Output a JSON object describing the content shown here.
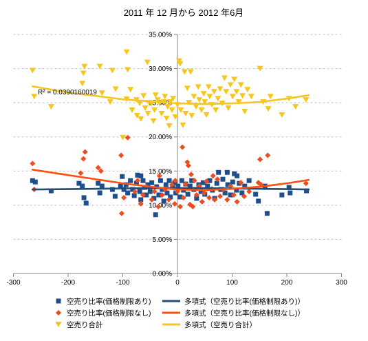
{
  "chart_data": {
    "type": "scatter",
    "title": "2011 年 12 月から 2012 年6月",
    "xlabel": "",
    "ylabel": "",
    "xlim": [
      -300,
      300
    ],
    "ylim": [
      0,
      35
    ],
    "x_ticks": [
      {
        "value": -300,
        "label": "-300"
      },
      {
        "value": -200,
        "label": "-200"
      },
      {
        "value": -100,
        "label": "-100"
      },
      {
        "value": 0,
        "label": "0"
      },
      {
        "value": 100,
        "label": "100"
      },
      {
        "value": 200,
        "label": "200"
      },
      {
        "value": 300,
        "label": "300"
      }
    ],
    "y_ticks": [
      {
        "value": 0,
        "label": "0.00%"
      },
      {
        "value": 5,
        "label": "5.00%"
      },
      {
        "value": 10,
        "label": "10.00%"
      },
      {
        "value": 15,
        "label": "15.00%"
      },
      {
        "value": 20,
        "label": "20.00%"
      },
      {
        "value": 25,
        "label": "25.00%"
      },
      {
        "value": 30,
        "label": "30.00%"
      },
      {
        "value": 35,
        "label": "35.00%"
      }
    ],
    "grid": "horizontal",
    "legend_position": "bottom",
    "annotation": "R² = 0.0390160019",
    "series": [
      {
        "name": "空売り比率(価格制限あり)",
        "marker": "square",
        "color": "#1F4E8C",
        "points": [
          [
            -265,
            13.6
          ],
          [
            -260,
            13.4
          ],
          [
            -231,
            12.1
          ],
          [
            -180,
            13.2
          ],
          [
            -174,
            12.8
          ],
          [
            -171,
            11.1
          ],
          [
            -167,
            10.3
          ],
          [
            -145,
            13.2
          ],
          [
            -142,
            11.8
          ],
          [
            -138,
            12.8
          ],
          [
            -119,
            12.3
          ],
          [
            -114,
            11.3
          ],
          [
            -104,
            12.8
          ],
          [
            -101,
            14.2
          ],
          [
            -98,
            12.3
          ],
          [
            -94,
            13.0
          ],
          [
            -91,
            11.8
          ],
          [
            -86,
            13.6
          ],
          [
            -82,
            12.3
          ],
          [
            -79,
            11.4
          ],
          [
            -75,
            13.2
          ],
          [
            -73,
            14.4
          ],
          [
            -69,
            12.0
          ],
          [
            -67,
            10.8
          ],
          [
            -67,
            14.3
          ],
          [
            -63,
            13.6
          ],
          [
            -60,
            12.6
          ],
          [
            -57,
            11.5
          ],
          [
            -54,
            13.0
          ],
          [
            -50,
            12.0
          ],
          [
            -47,
            13.3
          ],
          [
            -43,
            11.0
          ],
          [
            -40,
            8.6
          ],
          [
            -38,
            12.7
          ],
          [
            -34,
            11.5
          ],
          [
            -31,
            13.6
          ],
          [
            -28,
            12.3
          ],
          [
            -25,
            10.6
          ],
          [
            -21,
            13.0
          ],
          [
            -19,
            11.8
          ],
          [
            -15,
            13.6
          ],
          [
            -13,
            11.2
          ],
          [
            -9,
            12.6
          ],
          [
            -5,
            13.3
          ],
          [
            -3,
            11.8
          ],
          [
            1,
            12.8
          ],
          [
            5,
            11.2
          ],
          [
            8,
            13.6
          ],
          [
            11,
            12.2
          ],
          [
            15,
            13.1
          ],
          [
            19,
            11.6
          ],
          [
            23,
            12.8
          ],
          [
            26,
            13.6
          ],
          [
            30,
            12.3
          ],
          [
            35,
            11.0
          ],
          [
            39,
            13.0
          ],
          [
            43,
            12.0
          ],
          [
            47,
            13.3
          ],
          [
            50,
            11.6
          ],
          [
            55,
            12.8
          ],
          [
            59,
            13.6
          ],
          [
            64,
            12.2
          ],
          [
            68,
            11.0
          ],
          [
            72,
            13.2
          ],
          [
            75,
            14.8
          ],
          [
            79,
            12.3
          ],
          [
            83,
            13.8
          ],
          [
            87,
            11.8
          ],
          [
            91,
            14.8
          ],
          [
            92,
            13.0
          ],
          [
            97,
            11.5
          ],
          [
            101,
            13.4
          ],
          [
            104,
            14.6
          ],
          [
            108,
            12.2
          ],
          [
            109,
            14.3
          ],
          [
            113,
            13.2
          ],
          [
            118,
            11.8
          ],
          [
            123,
            12.8
          ],
          [
            131,
            13.6
          ],
          [
            143,
            11.6
          ],
          [
            148,
            10.6
          ],
          [
            160,
            12.8
          ],
          [
            164,
            8.8
          ],
          [
            191,
            11.5
          ],
          [
            204,
            12.6
          ],
          [
            206,
            11.8
          ],
          [
            236,
            12.1
          ]
        ]
      },
      {
        "name": "空売り比率(価格制限なし)",
        "marker": "diamond",
        "color": "#EE4B1E",
        "points": [
          [
            -265,
            16.1
          ],
          [
            -262,
            12.3
          ],
          [
            -177,
            14.7
          ],
          [
            -172,
            16.8
          ],
          [
            -169,
            17.8
          ],
          [
            -145,
            15.5
          ],
          [
            -140,
            15.0
          ],
          [
            -103,
            17.3
          ],
          [
            -102,
            8.8
          ],
          [
            -98,
            11.1
          ],
          [
            -91,
            19.9
          ],
          [
            -78,
            12.0
          ],
          [
            -73,
            13.6
          ],
          [
            -67,
            10.2
          ],
          [
            -63,
            11.5
          ],
          [
            -57,
            12.7
          ],
          [
            -47,
            10.8
          ],
          [
            -42,
            12.0
          ],
          [
            -35,
            9.8
          ],
          [
            -33,
            14.3
          ],
          [
            -28,
            11.5
          ],
          [
            -23,
            12.3
          ],
          [
            -16,
            10.8
          ],
          [
            -10,
            13.0
          ],
          [
            -5,
            10.2
          ],
          [
            -4,
            13.6
          ],
          [
            0,
            12.0
          ],
          [
            5,
            9.8
          ],
          [
            9,
            18.5
          ],
          [
            11,
            11.1
          ],
          [
            15,
            13.1
          ],
          [
            18,
            16.3
          ],
          [
            20,
            15.8
          ],
          [
            23,
            10.1
          ],
          [
            25,
            14.5
          ],
          [
            28,
            9.8
          ],
          [
            31,
            13.6
          ],
          [
            35,
            11.5
          ],
          [
            40,
            12.8
          ],
          [
            45,
            10.5
          ],
          [
            49,
            11.8
          ],
          [
            53,
            13.5
          ],
          [
            58,
            11.1
          ],
          [
            63,
            12.4
          ],
          [
            65,
            14.3
          ],
          [
            68,
            10.8
          ],
          [
            73,
            13.8
          ],
          [
            78,
            11.3
          ],
          [
            84,
            12.3
          ],
          [
            91,
            10.8
          ],
          [
            97,
            12.8
          ],
          [
            103,
            11.5
          ],
          [
            109,
            10.5
          ],
          [
            116,
            13.3
          ],
          [
            122,
            11.3
          ],
          [
            131,
            12.0
          ],
          [
            148,
            13.3
          ],
          [
            151,
            16.7
          ],
          [
            153,
            13.0
          ],
          [
            165,
            17.3
          ],
          [
            235,
            13.2
          ]
        ]
      },
      {
        "name": "空売り合計",
        "marker": "triangle-down",
        "color": "#F7C61C",
        "points": [
          [
            -265,
            29.7
          ],
          [
            -262,
            25.9
          ],
          [
            -231,
            24.4
          ],
          [
            -174,
            27.8
          ],
          [
            -172,
            29.3
          ],
          [
            -170,
            30.3
          ],
          [
            -142,
            30.3
          ],
          [
            -138,
            26.4
          ],
          [
            -123,
            25.1
          ],
          [
            -119,
            29.7
          ],
          [
            -113,
            27.0
          ],
          [
            -100,
            19.9
          ],
          [
            -93,
            32.4
          ],
          [
            -93,
            25.5
          ],
          [
            -91,
            29.8
          ],
          [
            -86,
            26.9
          ],
          [
            -83,
            23.9
          ],
          [
            -75,
            25.4
          ],
          [
            -74,
            23.1
          ],
          [
            -69,
            24.9
          ],
          [
            -67,
            22.6
          ],
          [
            -62,
            26.0
          ],
          [
            -59,
            24.2
          ],
          [
            -55,
            30.9
          ],
          [
            -54,
            23.4
          ],
          [
            -52,
            25.0
          ],
          [
            -47,
            24.9
          ],
          [
            -44,
            22.3
          ],
          [
            -42,
            23.9
          ],
          [
            -40,
            26.1
          ],
          [
            -36,
            25.4
          ],
          [
            -33,
            24.9
          ],
          [
            -29,
            23.4
          ],
          [
            -25,
            25.1
          ],
          [
            -23,
            25.9
          ],
          [
            -20,
            22.7
          ],
          [
            -18,
            24.4
          ],
          [
            -15,
            21.6
          ],
          [
            -13,
            25.1
          ],
          [
            -10,
            23.9
          ],
          [
            -8,
            25.6
          ],
          [
            -4,
            22.9
          ],
          [
            0,
            24.7
          ],
          [
            3,
            31.1
          ],
          [
            5,
            30.7
          ],
          [
            6,
            23.9
          ],
          [
            10,
            21.7
          ],
          [
            13,
            29.5
          ],
          [
            15,
            23.4
          ],
          [
            18,
            27.1
          ],
          [
            21,
            25.0
          ],
          [
            24,
            29.5
          ],
          [
            26,
            23.1
          ],
          [
            30,
            25.9
          ],
          [
            34,
            24.4
          ],
          [
            38,
            27.3
          ],
          [
            40,
            25.4
          ],
          [
            44,
            23.9
          ],
          [
            48,
            26.3
          ],
          [
            50,
            25.1
          ],
          [
            53,
            23.2
          ],
          [
            57,
            27.3
          ],
          [
            59,
            25.9
          ],
          [
            63,
            24.7
          ],
          [
            67,
            26.6
          ],
          [
            70,
            23.9
          ],
          [
            74,
            25.6
          ],
          [
            78,
            27.0
          ],
          [
            82,
            24.9
          ],
          [
            86,
            28.6
          ],
          [
            89,
            26.6
          ],
          [
            93,
            24.2
          ],
          [
            97,
            27.6
          ],
          [
            101,
            25.9
          ],
          [
            104,
            28.4
          ],
          [
            108,
            26.6
          ],
          [
            112,
            25.1
          ],
          [
            116,
            27.6
          ],
          [
            119,
            26.0
          ],
          [
            123,
            23.7
          ],
          [
            128,
            26.9
          ],
          [
            135,
            25.9
          ],
          [
            151,
            30.0
          ],
          [
            157,
            25.1
          ],
          [
            166,
            24.1
          ],
          [
            170,
            25.9
          ],
          [
            191,
            23.2
          ],
          [
            204,
            25.6
          ],
          [
            216,
            24.4
          ],
          [
            235,
            25.4
          ]
        ]
      }
    ],
    "trendlines": [
      {
        "name": "多項式（空売り比率(価格制限あり)）",
        "type": "polynomial",
        "color": "#1F4E79",
        "points": [
          [
            -265,
            12.3
          ],
          [
            -200,
            12.35
          ],
          [
            -150,
            12.4
          ],
          [
            -100,
            12.45
          ],
          [
            -50,
            12.5
          ],
          [
            0,
            12.5
          ],
          [
            50,
            12.5
          ],
          [
            100,
            12.45
          ],
          [
            150,
            12.4
          ],
          [
            200,
            12.35
          ],
          [
            240,
            12.3
          ]
        ]
      },
      {
        "name": "多項式（空売り比率(価格制限なし)）",
        "type": "polynomial",
        "color": "#FF4F14",
        "points": [
          [
            -265,
            15.2
          ],
          [
            -200,
            14.4
          ],
          [
            -150,
            13.8
          ],
          [
            -100,
            13.2
          ],
          [
            -50,
            12.7
          ],
          [
            0,
            12.3
          ],
          [
            50,
            12.2
          ],
          [
            100,
            12.4
          ],
          [
            150,
            12.7
          ],
          [
            200,
            13.2
          ],
          [
            240,
            13.7
          ]
        ]
      },
      {
        "name": "多項式（空売り合計）",
        "type": "polynomial",
        "color": "#F6C623",
        "points": [
          [
            -265,
            27.4
          ],
          [
            -200,
            26.5
          ],
          [
            -150,
            26.0
          ],
          [
            -100,
            25.5
          ],
          [
            -50,
            25.2
          ],
          [
            0,
            24.9
          ],
          [
            50,
            24.8
          ],
          [
            100,
            24.9
          ],
          [
            150,
            25.1
          ],
          [
            200,
            25.6
          ],
          [
            240,
            26.1
          ]
        ]
      }
    ]
  }
}
